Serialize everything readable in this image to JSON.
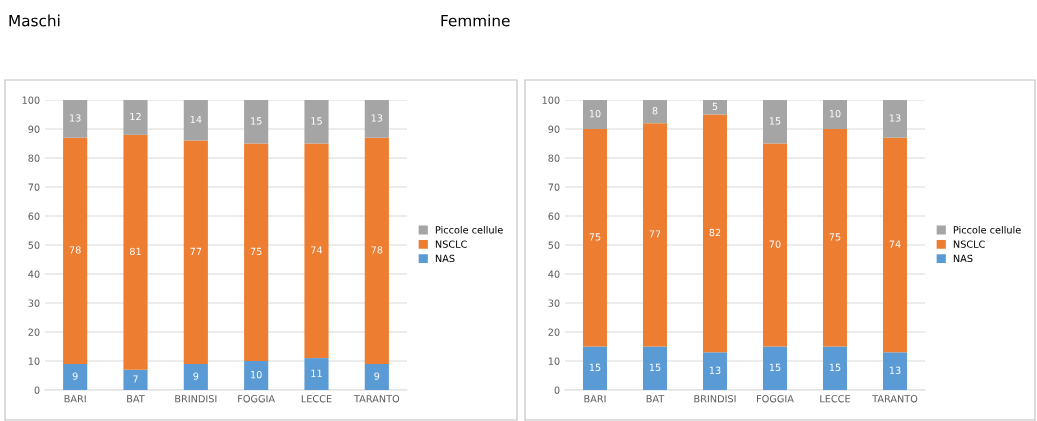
{
  "chart_data": [
    {
      "type": "bar",
      "title": "Maschi",
      "stacked": true,
      "categories": [
        "BARI",
        "BAT",
        "BRINDISI",
        "FOGGIA",
        "LECCE",
        "TARANTO"
      ],
      "ylim": [
        0,
        100
      ],
      "yticks": [
        0,
        10,
        20,
        30,
        40,
        50,
        60,
        70,
        80,
        90,
        100
      ],
      "grid": "y",
      "legend": "right",
      "data_labels": true,
      "series": [
        {
          "name": "NAS",
          "color": "#5b9bd5",
          "values": [
            9,
            7,
            9,
            10,
            11,
            9
          ]
        },
        {
          "name": "NSCLC",
          "color": "#ed7d31",
          "values": [
            78,
            81,
            77,
            75,
            74,
            78
          ]
        },
        {
          "name": "Piccole cellule",
          "color": "#a5a5a5",
          "values": [
            13,
            12,
            14,
            15,
            15,
            13
          ]
        }
      ]
    },
    {
      "type": "bar",
      "title": "Femmine",
      "stacked": true,
      "categories": [
        "BARI",
        "BAT",
        "BRINDISI",
        "FOGGIA",
        "LECCE",
        "TARANTO"
      ],
      "ylim": [
        0,
        100
      ],
      "yticks": [
        0,
        10,
        20,
        30,
        40,
        50,
        60,
        70,
        80,
        90,
        100
      ],
      "grid": "y",
      "legend": "right",
      "data_labels": true,
      "series": [
        {
          "name": "NAS",
          "color": "#5b9bd5",
          "values": [
            15,
            15,
            13,
            15,
            15,
            13
          ]
        },
        {
          "name": "NSCLC",
          "color": "#ed7d31",
          "values": [
            75,
            77,
            82,
            70,
            75,
            74
          ]
        },
        {
          "name": "Piccole cellule",
          "color": "#a5a5a5",
          "values": [
            10,
            8,
            5,
            15,
            10,
            13
          ]
        }
      ]
    }
  ]
}
